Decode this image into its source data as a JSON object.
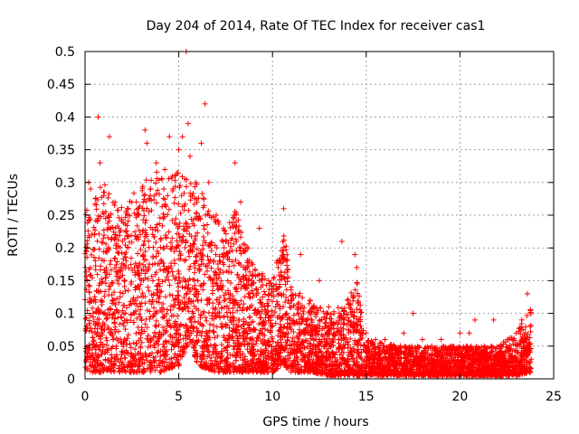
{
  "chart_data": {
    "type": "scatter",
    "title": "Day 204 of 2014, Rate Of TEC Index for receiver cas1",
    "xlabel": "GPS time / hours",
    "ylabel": "ROTI / TECUs",
    "xlim": [
      0,
      25
    ],
    "ylim": [
      0,
      0.5
    ],
    "xticks": [
      0,
      5,
      10,
      15,
      20,
      25
    ],
    "xtick_labels": [
      "0",
      "5",
      "10",
      "15",
      "20",
      "25"
    ],
    "yticks": [
      0,
      0.05,
      0.1,
      0.15,
      0.2,
      0.25,
      0.3,
      0.35,
      0.4,
      0.45,
      0.5
    ],
    "ytick_labels": [
      "0",
      "0.05",
      "0.1",
      "0.15",
      "0.2",
      "0.25",
      "0.3",
      "0.35",
      "0.4",
      "0.45",
      "0.5"
    ],
    "grid": true,
    "marker": "+",
    "color": "#ff0000",
    "series": [
      {
        "name": "ROTI",
        "points": [
          [
            0.1,
            0.15
          ],
          [
            0.2,
            0.3
          ],
          [
            0.3,
            0.29
          ],
          [
            0.5,
            0.22
          ],
          [
            0.7,
            0.4
          ],
          [
            0.8,
            0.33
          ],
          [
            1.0,
            0.28
          ],
          [
            1.3,
            0.37
          ],
          [
            1.6,
            0.27
          ],
          [
            2.0,
            0.21
          ],
          [
            2.3,
            0.26
          ],
          [
            2.5,
            0.27
          ],
          [
            2.8,
            0.25
          ],
          [
            3.1,
            0.27
          ],
          [
            3.2,
            0.38
          ],
          [
            3.3,
            0.36
          ],
          [
            3.5,
            0.29
          ],
          [
            3.8,
            0.33
          ],
          [
            4.2,
            0.29
          ],
          [
            4.5,
            0.37
          ],
          [
            4.8,
            0.31
          ],
          [
            5.0,
            0.35
          ],
          [
            5.2,
            0.37
          ],
          [
            5.4,
            0.5
          ],
          [
            5.5,
            0.39
          ],
          [
            5.6,
            0.34
          ],
          [
            5.9,
            0.3
          ],
          [
            6.2,
            0.36
          ],
          [
            6.4,
            0.42
          ],
          [
            6.6,
            0.3
          ],
          [
            7.0,
            0.25
          ],
          [
            7.5,
            0.21
          ],
          [
            8.0,
            0.33
          ],
          [
            8.3,
            0.27
          ],
          [
            8.7,
            0.2
          ],
          [
            9.3,
            0.23
          ],
          [
            9.8,
            0.15
          ],
          [
            10.3,
            0.17
          ],
          [
            10.6,
            0.26
          ],
          [
            11.0,
            0.14
          ],
          [
            11.5,
            0.19
          ],
          [
            12.0,
            0.12
          ],
          [
            12.5,
            0.15
          ],
          [
            13.0,
            0.11
          ],
          [
            13.7,
            0.21
          ],
          [
            14.0,
            0.12
          ],
          [
            14.4,
            0.19
          ],
          [
            14.5,
            0.17
          ],
          [
            15.0,
            0.07
          ],
          [
            15.5,
            0.06
          ],
          [
            16.0,
            0.06
          ],
          [
            16.5,
            0.05
          ],
          [
            17.0,
            0.07
          ],
          [
            17.5,
            0.1
          ],
          [
            18.0,
            0.06
          ],
          [
            18.5,
            0.05
          ],
          [
            19.0,
            0.06
          ],
          [
            19.5,
            0.05
          ],
          [
            20.0,
            0.07
          ],
          [
            20.5,
            0.07
          ],
          [
            20.8,
            0.09
          ],
          [
            21.3,
            0.05
          ],
          [
            21.8,
            0.09
          ],
          [
            22.2,
            0.05
          ],
          [
            22.6,
            0.06
          ],
          [
            23.0,
            0.07
          ],
          [
            23.3,
            0.09
          ],
          [
            23.6,
            0.13
          ],
          [
            0.1,
            0.03
          ],
          [
            0.5,
            0.05
          ],
          [
            1.0,
            0.1
          ],
          [
            1.5,
            0.06
          ],
          [
            2.0,
            0.04
          ],
          [
            2.5,
            0.02
          ],
          [
            3.0,
            0.03
          ],
          [
            3.5,
            0.05
          ],
          [
            4.0,
            0.02
          ],
          [
            4.5,
            0.03
          ],
          [
            5.0,
            0.06
          ],
          [
            5.5,
            0.15
          ],
          [
            6.0,
            0.12
          ],
          [
            6.5,
            0.05
          ],
          [
            7.0,
            0.04
          ],
          [
            7.5,
            0.08
          ],
          [
            8.0,
            0.05
          ],
          [
            8.5,
            0.03
          ],
          [
            9.0,
            0.04
          ],
          [
            9.5,
            0.06
          ],
          [
            10.0,
            0.02
          ],
          [
            10.5,
            0.05
          ],
          [
            11.0,
            0.02
          ],
          [
            11.5,
            0.04
          ],
          [
            12.0,
            0.02
          ],
          [
            12.5,
            0.03
          ],
          [
            13.0,
            0.01
          ],
          [
            13.5,
            0.02
          ],
          [
            14.0,
            0.01
          ],
          [
            14.5,
            0.02
          ],
          [
            15.0,
            0.01
          ],
          [
            16.0,
            0.01
          ],
          [
            17.0,
            0.02
          ],
          [
            18.0,
            0.01
          ],
          [
            19.0,
            0.02
          ],
          [
            20.0,
            0.01
          ],
          [
            21.0,
            0.02
          ],
          [
            22.0,
            0.01
          ],
          [
            23.0,
            0.02
          ],
          [
            23.8,
            0.03
          ]
        ]
      }
    ],
    "density_profile": [
      [
        0.0,
        0.01,
        0.26
      ],
      [
        1.0,
        0.01,
        0.3
      ],
      [
        2.0,
        0.01,
        0.26
      ],
      [
        3.0,
        0.01,
        0.3
      ],
      [
        4.0,
        0.01,
        0.32
      ],
      [
        5.0,
        0.02,
        0.32
      ],
      [
        5.6,
        0.06,
        0.3
      ],
      [
        6.0,
        0.02,
        0.3
      ],
      [
        7.0,
        0.01,
        0.24
      ],
      [
        8.0,
        0.01,
        0.26
      ],
      [
        9.0,
        0.01,
        0.17
      ],
      [
        10.0,
        0.01,
        0.15
      ],
      [
        10.6,
        0.02,
        0.24
      ],
      [
        11.0,
        0.01,
        0.14
      ],
      [
        12.0,
        0.01,
        0.12
      ],
      [
        13.0,
        0.005,
        0.1
      ],
      [
        14.0,
        0.005,
        0.12
      ],
      [
        14.5,
        0.005,
        0.15
      ],
      [
        15.0,
        0.005,
        0.06
      ],
      [
        17.0,
        0.005,
        0.05
      ],
      [
        18.0,
        0.005,
        0.05
      ],
      [
        19.0,
        0.005,
        0.05
      ],
      [
        20.0,
        0.005,
        0.05
      ],
      [
        21.0,
        0.005,
        0.05
      ],
      [
        22.0,
        0.005,
        0.05
      ],
      [
        23.0,
        0.005,
        0.07
      ],
      [
        23.8,
        0.01,
        0.11
      ]
    ]
  }
}
